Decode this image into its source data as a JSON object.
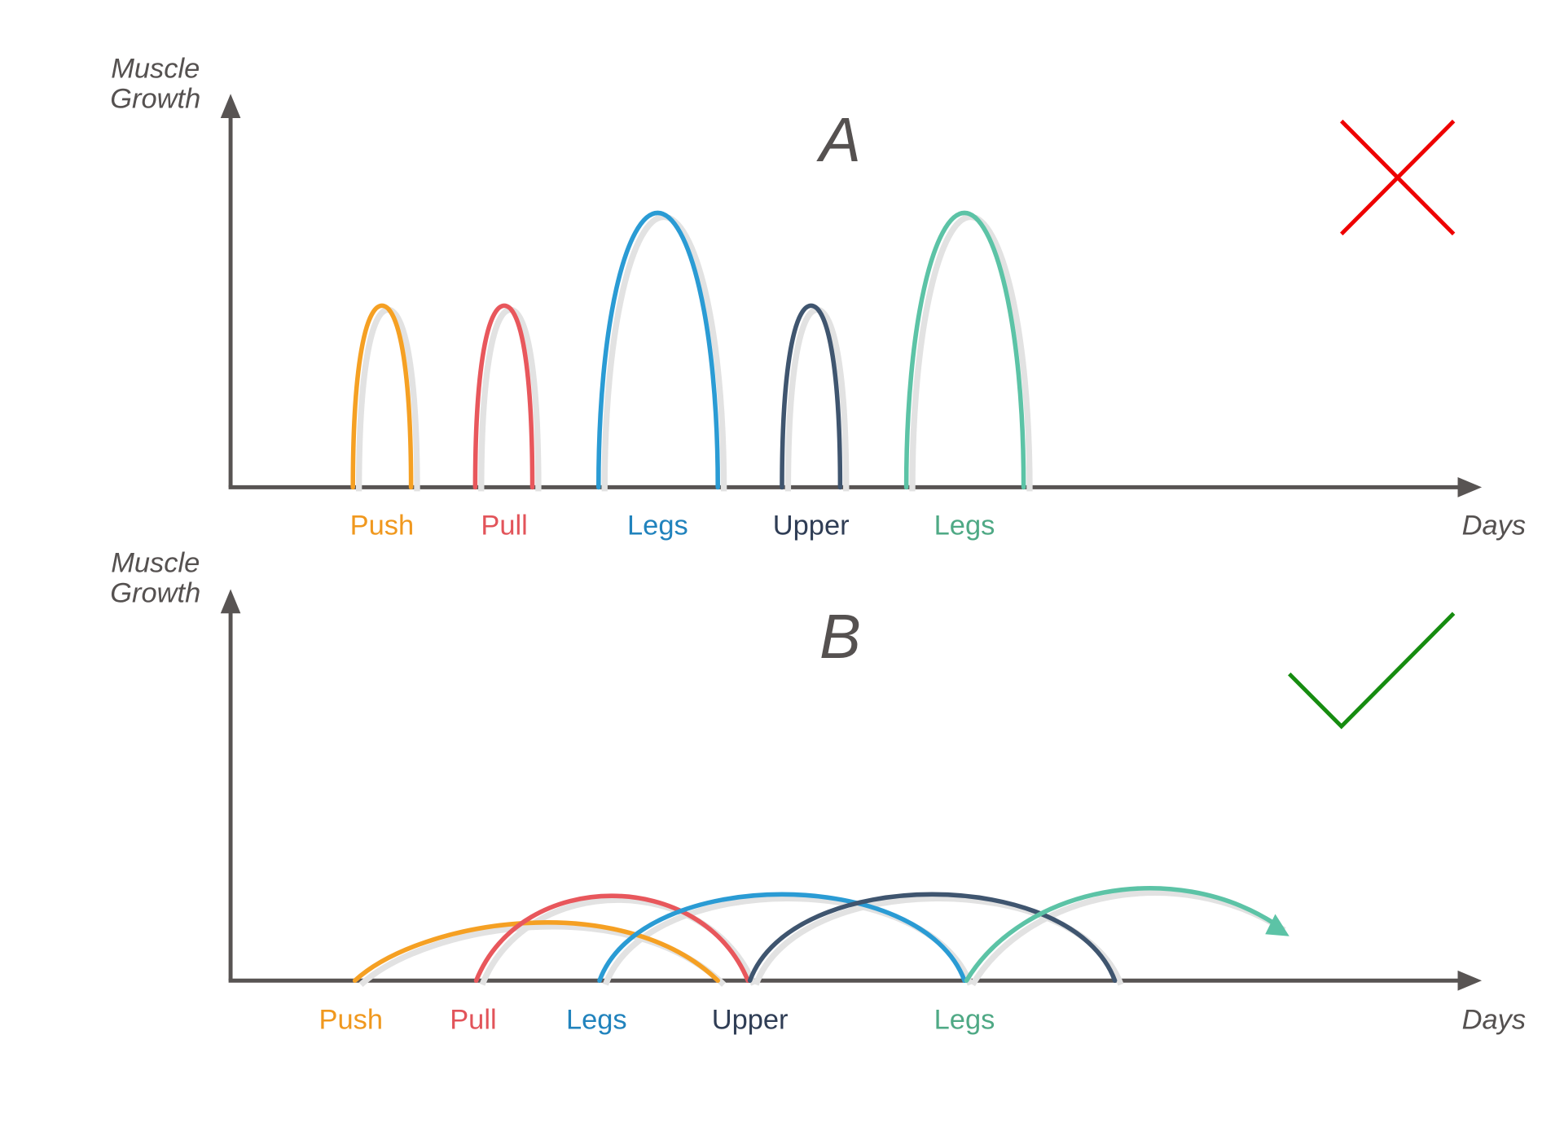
{
  "colors": {
    "push": "#f5a023",
    "pull": "#e8575c",
    "legs": "#2a9bd4",
    "upper": "#3f556f",
    "legs2": "#5cc3a6",
    "axis": "#585453",
    "cross": "#ee0000",
    "check": "#168c10"
  },
  "panel_a": {
    "title": "A",
    "y_axis_label_line1": "Muscle",
    "y_axis_label_line2": "Growth",
    "x_axis_label": "Days",
    "workouts": [
      "Push",
      "Pull",
      "Legs",
      "Upper",
      "Legs"
    ],
    "verdict_icon": "red-cross-icon"
  },
  "panel_b": {
    "title": "B",
    "y_axis_label_line1": "Muscle",
    "y_axis_label_line2": "Growth",
    "x_axis_label": "Days",
    "workouts": [
      "Push",
      "Pull",
      "Legs",
      "Upper",
      "Legs"
    ],
    "verdict_icon": "green-check-icon"
  }
}
